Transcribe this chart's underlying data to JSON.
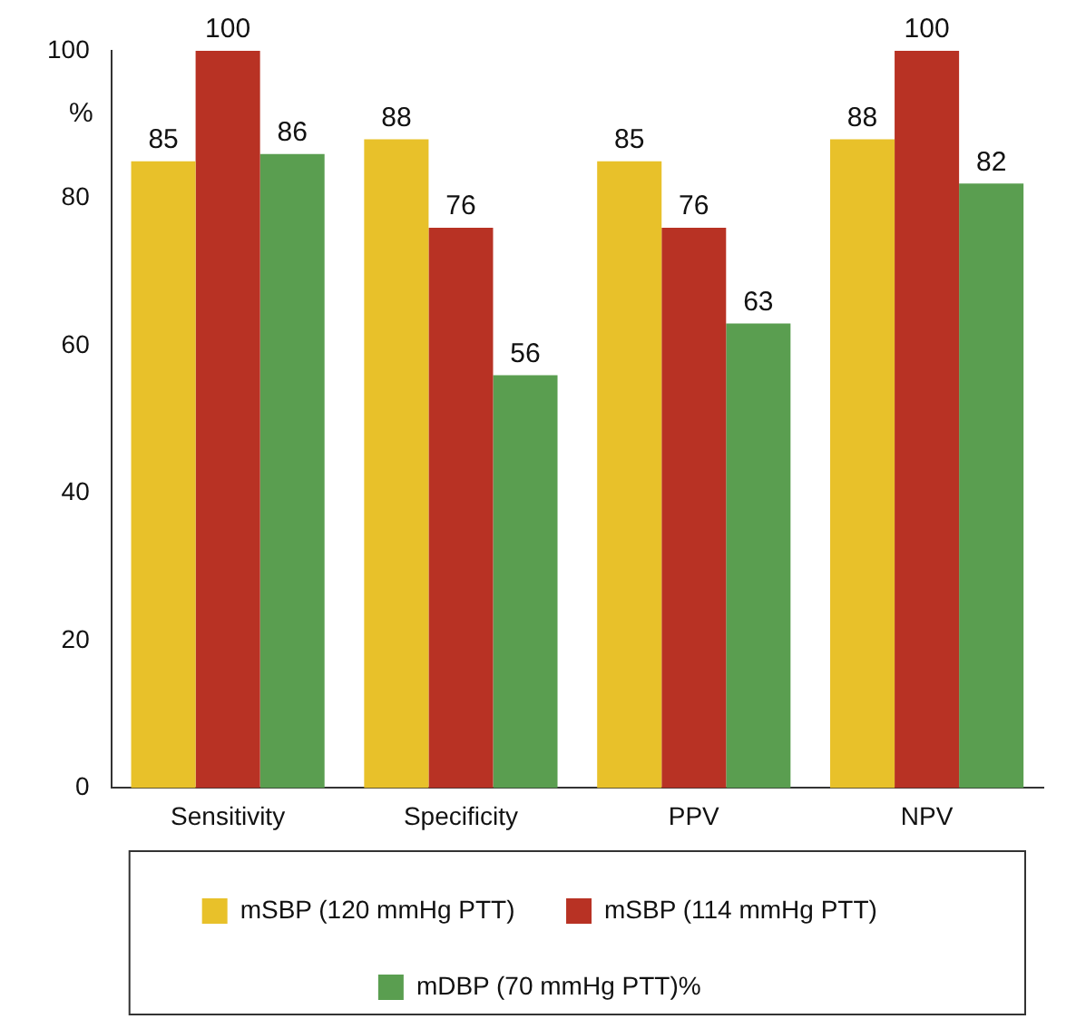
{
  "chart_data": {
    "type": "bar",
    "ylabel": "%",
    "categories": [
      "Sensitivity",
      "Specificity",
      "PPV",
      "NPV"
    ],
    "series": [
      {
        "name": "mSBP (120 mmHg PTT)",
        "color": "#e8c12a",
        "values": [
          85,
          88,
          85,
          88
        ]
      },
      {
        "name": "mSBP (114 mmHg PTT)",
        "color": "#b83224",
        "values": [
          100,
          76,
          76,
          100
        ]
      },
      {
        "name": "mDBP (70 mmHg PTT)%",
        "color": "#5a9e50",
        "values": [
          86,
          56,
          63,
          82
        ]
      }
    ],
    "ylim": [
      0,
      100
    ],
    "yticks": [
      0,
      20,
      40,
      60,
      80,
      100
    ],
    "grid": false,
    "legend": "bottom",
    "data_labels": true
  }
}
